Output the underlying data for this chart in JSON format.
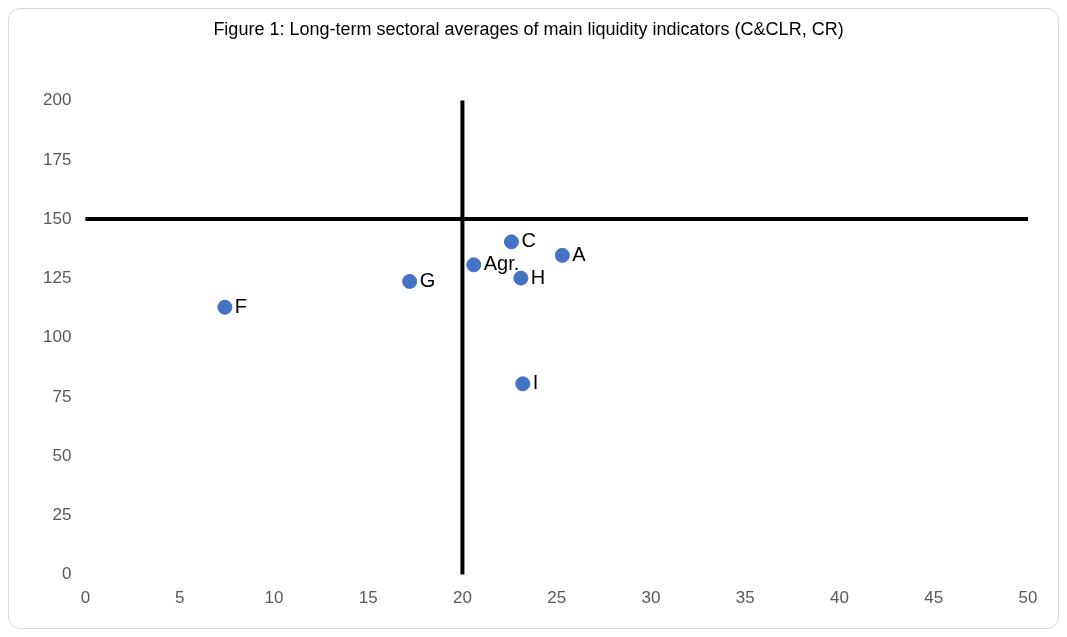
{
  "chart_data": {
    "type": "scatter",
    "title": "Figure 1: Long-term sectoral averages of main liquidity indicators (C&CLR, CR)",
    "x": [
      7.4,
      17.2,
      20.6,
      22.6,
      23.1,
      25.3,
      23.2
    ],
    "values": [
      112.8,
      123.7,
      130.7,
      140.4,
      125.1,
      134.7,
      80.5
    ],
    "color": "#4472c4",
    "marker": "circle",
    "xlim": [
      0,
      50
    ],
    "xticks": [
      0,
      5,
      10,
      15,
      20,
      25,
      30,
      35,
      40,
      45,
      50
    ],
    "ylim": [
      0,
      200
    ],
    "yticks": [
      0,
      25,
      50,
      75,
      100,
      125,
      150,
      175,
      200
    ],
    "grid": false,
    "legend": false,
    "ref_lines": [
      {
        "axis": "x",
        "value": 20,
        "color": "#000000"
      },
      {
        "axis": "y",
        "value": 150,
        "color": "#000000"
      }
    ],
    "annotations": [
      {
        "text": "F",
        "x": 7.4,
        "y": 112.8
      },
      {
        "text": "G",
        "x": 17.2,
        "y": 123.7
      },
      {
        "text": "Agr.",
        "x": 20.6,
        "y": 130.7
      },
      {
        "text": "C",
        "x": 22.6,
        "y": 140.4
      },
      {
        "text": "H",
        "x": 23.1,
        "y": 125.1
      },
      {
        "text": "A",
        "x": 25.3,
        "y": 134.7
      },
      {
        "text": "I",
        "x": 23.2,
        "y": 80.5
      }
    ]
  }
}
